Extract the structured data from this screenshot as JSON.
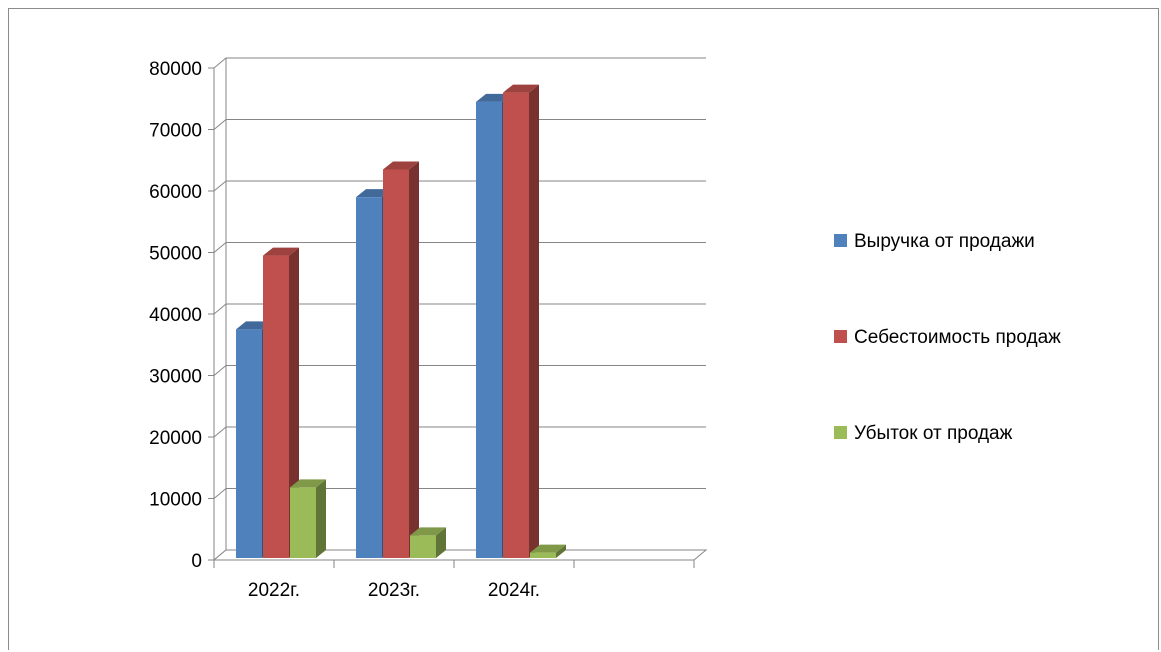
{
  "chart_data": {
    "type": "bar",
    "title": "",
    "xlabel": "",
    "ylabel": "",
    "categories": [
      "2022г.",
      "2023г.",
      "2024г.",
      ""
    ],
    "series": [
      {
        "name": "Выручка от продажи",
        "values": [
          37500,
          59000,
          74500,
          null
        ],
        "color": "#4F81BD"
      },
      {
        "name": "Себестоимость продаж",
        "values": [
          49500,
          63500,
          76000,
          null
        ],
        "color": "#C0504D"
      },
      {
        "name": "Убыток от продаж",
        "values": [
          11800,
          4000,
          1200,
          null
        ],
        "color": "#9BBB59"
      }
    ],
    "ylim": [
      0,
      80000
    ],
    "yticks": [
      "0",
      "10000",
      "20000",
      "30000",
      "40000",
      "50000",
      "60000",
      "70000",
      "80000"
    ],
    "grid": true,
    "legend_position": "right",
    "style": "3d-clustered-column"
  }
}
